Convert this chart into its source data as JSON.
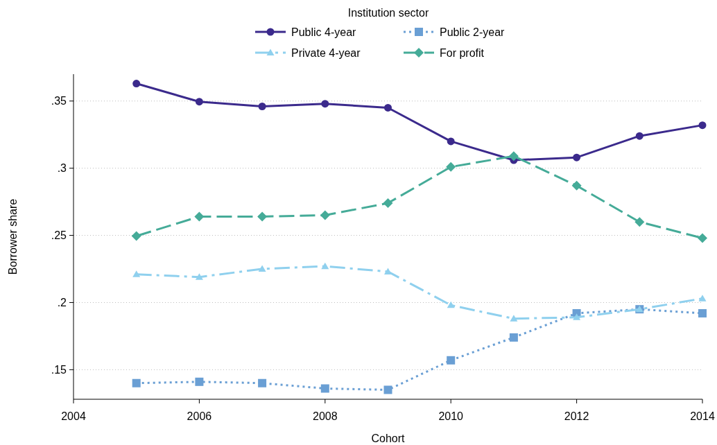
{
  "chart_data": {
    "type": "line",
    "xlabel": "Cohort",
    "ylabel": "Borrower share",
    "legend_title": "Institution sector",
    "legend": "top",
    "grid": "y",
    "x": [
      2005,
      2006,
      2007,
      2008,
      2009,
      2010,
      2011,
      2012,
      2013,
      2014
    ],
    "xlim": [
      2004,
      2014
    ],
    "xticks": [
      2004,
      2006,
      2008,
      2010,
      2012,
      2014
    ],
    "ylim": [
      0.128,
      0.37
    ],
    "yticks": [
      {
        "value": 0.15,
        "label": ".15"
      },
      {
        "value": 0.2,
        "label": ".2"
      },
      {
        "value": 0.25,
        "label": ".25"
      },
      {
        "value": 0.3,
        "label": ".3"
      },
      {
        "value": 0.35,
        "label": ".35"
      }
    ],
    "series": [
      {
        "name": "Public 4-year",
        "color": "#3b2a8c",
        "marker": "circle",
        "line_style": "solid",
        "values": [
          0.363,
          0.3495,
          0.346,
          0.348,
          0.345,
          0.32,
          0.306,
          0.308,
          0.324,
          0.332
        ]
      },
      {
        "name": "Public 2-year",
        "color": "#6a9fd4",
        "marker": "square",
        "line_style": "dotted",
        "values": [
          0.14,
          0.141,
          0.14,
          0.136,
          0.135,
          0.157,
          0.174,
          0.192,
          0.195,
          0.192
        ]
      },
      {
        "name": "Private 4-year",
        "color": "#8fd0ee",
        "marker": "triangle",
        "line_style": "dashdot",
        "values": [
          0.221,
          0.219,
          0.225,
          0.227,
          0.223,
          0.198,
          0.188,
          0.189,
          0.195,
          0.203
        ]
      },
      {
        "name": "For profit",
        "color": "#45ab98",
        "marker": "diamond",
        "line_style": "dashed",
        "values": [
          0.2495,
          0.264,
          0.264,
          0.265,
          0.274,
          0.301,
          0.309,
          0.287,
          0.26,
          0.248
        ]
      }
    ]
  }
}
